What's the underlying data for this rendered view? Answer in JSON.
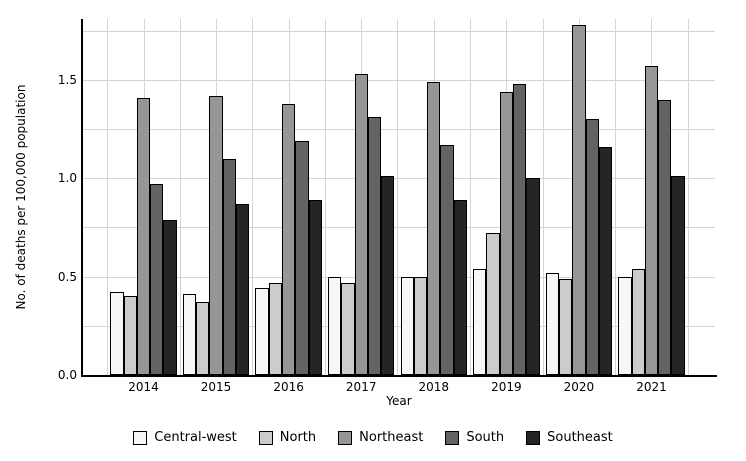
{
  "chart_data": {
    "type": "bar",
    "title": "",
    "xlabel": "Year",
    "ylabel": "No. of deaths per 100,000 population",
    "categories": [
      "2014",
      "2015",
      "2016",
      "2017",
      "2018",
      "2019",
      "2020",
      "2021"
    ],
    "series": [
      {
        "name": "Central-west",
        "color": "#f7f7f7",
        "values": [
          0.42,
          0.41,
          0.44,
          0.5,
          0.5,
          0.54,
          0.52,
          0.5
        ]
      },
      {
        "name": "North",
        "color": "#cccccc",
        "values": [
          0.4,
          0.37,
          0.47,
          0.47,
          0.5,
          0.72,
          0.49,
          0.54
        ]
      },
      {
        "name": "Northeast",
        "color": "#969696",
        "values": [
          1.41,
          1.42,
          1.38,
          1.53,
          1.49,
          1.44,
          1.78,
          1.57
        ]
      },
      {
        "name": "South",
        "color": "#636363",
        "values": [
          0.97,
          1.1,
          1.19,
          1.31,
          1.17,
          1.48,
          1.3,
          1.4
        ]
      },
      {
        "name": "Southeast",
        "color": "#252525",
        "values": [
          0.79,
          0.87,
          0.89,
          1.01,
          0.89,
          1.0,
          1.16,
          1.01
        ]
      }
    ],
    "ylim": [
      0.0,
      1.81
    ],
    "yticks": [
      0.0,
      0.5,
      1.0,
      1.5
    ],
    "ytick_labels": [
      "0.0",
      "0.5",
      "1.0",
      "1.5"
    ],
    "minor_grid_step": 0.25,
    "grid": true,
    "legend_position": "bottom",
    "colors": {
      "bar_outline": "#000000",
      "gridline": "#d4d4d4",
      "axis_line": "#000000",
      "background": "#ffffff",
      "text": "#000000"
    }
  }
}
